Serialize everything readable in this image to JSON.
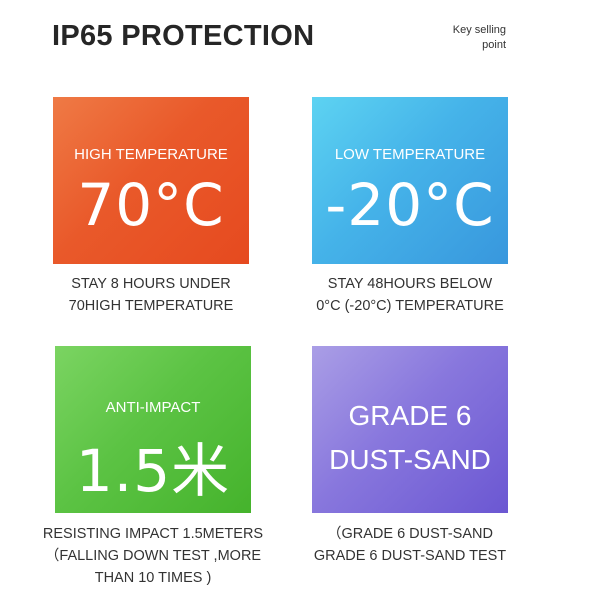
{
  "header": {
    "title": "IP65 PROTECTION",
    "tag_line1": "Key selling",
    "tag_line2": "point"
  },
  "colors": {
    "high_temp": "#e9592a",
    "low_temp": "#45b3e9",
    "anti_impact": "#5cc344",
    "dust_sand": "#8877dd"
  },
  "features": [
    {
      "label": "HIGH TEMPERATURE",
      "value": "70°C",
      "caption": [
        "STAY 8 HOURS UNDER",
        "70HIGH TEMPERATURE"
      ]
    },
    {
      "label": "LOW TEMPERATURE",
      "value": "-20°C",
      "caption": [
        "STAY 48HOURS BELOW",
        "0°C (-20°C) TEMPERATURE"
      ]
    },
    {
      "label": "ANTI-IMPACT",
      "value": "1.5米",
      "caption": [
        "RESISTING IMPACT 1.5METERS",
        "（FALLING DOWN TEST ,MORE",
        "THAN 10 TIMES )"
      ]
    },
    {
      "value_line1": "GRADE 6",
      "value_line2": "DUST-SAND",
      "caption": [
        "（GRADE 6 DUST-SAND",
        "GRADE 6 DUST-SAND TEST"
      ]
    }
  ]
}
